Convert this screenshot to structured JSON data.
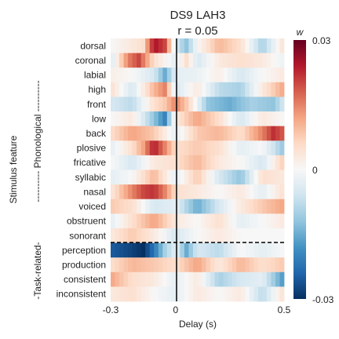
{
  "chart_data": {
    "type": "heatmap",
    "title": "DS9 LAH3",
    "subtitle": "r = 0.05",
    "xlabel": "Delay (s)",
    "ylabel": "Stimulus feature",
    "group_labels": [
      "---------- Phonological ----------",
      "-Task-related-"
    ],
    "xlim": [
      -0.3,
      0.5
    ],
    "x_ticks": [
      "-0.3",
      "0",
      "0.5"
    ],
    "vertical_line_at": 0,
    "separator_after_row": "sonorant",
    "rows": [
      "dorsal",
      "coronal",
      "labial",
      "high",
      "front",
      "low",
      "back",
      "plosive",
      "fricative",
      "syllabic",
      "nasal",
      "voiced",
      "obstruent",
      "sonorant",
      "perception",
      "production",
      "consistent",
      "inconsistent"
    ],
    "n_delay_bins": 40,
    "colorbar": {
      "label": "w",
      "min": -0.03,
      "max": 0.03,
      "ticks": [
        "0.03",
        "0",
        "-0.03"
      ],
      "colormap": "RdBu_r",
      "stops": [
        "#053061",
        "#2166ac",
        "#4393c3",
        "#92c5de",
        "#d1e5f0",
        "#f7f7f7",
        "#fddbc7",
        "#f4a582",
        "#d6604d",
        "#b2182b",
        "#67001f"
      ]
    },
    "weights": {
      "dorsal": [
        [
          -0.3,
          0
        ],
        [
          -0.15,
          0.005
        ],
        [
          -0.1,
          0.025
        ],
        [
          -0.05,
          0.02
        ],
        [
          0,
          -0.005
        ],
        [
          0.05,
          -0.012
        ],
        [
          0.1,
          0
        ],
        [
          0.2,
          0.01
        ],
        [
          0.3,
          0.005
        ],
        [
          0.4,
          -0.01
        ],
        [
          0.5,
          0.005
        ]
      ],
      "coronal": [
        [
          -0.3,
          -0.005
        ],
        [
          -0.22,
          0.015
        ],
        [
          -0.17,
          0.02
        ],
        [
          -0.1,
          0.005
        ],
        [
          0,
          -0.003
        ],
        [
          0.05,
          0.005
        ],
        [
          0.1,
          -0.005
        ],
        [
          0.2,
          0.003
        ],
        [
          0.3,
          0.005
        ],
        [
          0.4,
          0.003
        ],
        [
          0.5,
          -0.002
        ]
      ],
      "labial": [
        [
          -0.3,
          0.002
        ],
        [
          -0.2,
          0
        ],
        [
          -0.1,
          -0.005
        ],
        [
          -0.05,
          -0.015
        ],
        [
          0,
          -0.003
        ],
        [
          0.1,
          -0.002
        ],
        [
          0.2,
          0.002
        ],
        [
          0.3,
          -0.005
        ],
        [
          0.4,
          0
        ],
        [
          0.5,
          0.003
        ]
      ],
      "high": [
        [
          -0.3,
          0.005
        ],
        [
          -0.2,
          -0.005
        ],
        [
          -0.1,
          0.01
        ],
        [
          -0.05,
          0.015
        ],
        [
          0,
          -0.005
        ],
        [
          0.1,
          0.003
        ],
        [
          0.2,
          -0.008
        ],
        [
          0.3,
          -0.01
        ],
        [
          0.4,
          0.003
        ],
        [
          0.5,
          0.012
        ]
      ],
      "front": [
        [
          -0.3,
          -0.005
        ],
        [
          -0.2,
          -0.008
        ],
        [
          -0.1,
          0.005
        ],
        [
          -0.05,
          0.008
        ],
        [
          0,
          0.015
        ],
        [
          0.05,
          0.008
        ],
        [
          0.15,
          -0.012
        ],
        [
          0.25,
          -0.015
        ],
        [
          0.35,
          -0.01
        ],
        [
          0.45,
          -0.012
        ],
        [
          0.5,
          -0.005
        ]
      ],
      "low": [
        [
          -0.3,
          0
        ],
        [
          -0.2,
          0.003
        ],
        [
          -0.1,
          -0.012
        ],
        [
          -0.05,
          -0.02
        ],
        [
          0,
          0.003
        ],
        [
          0.1,
          0.012
        ],
        [
          0.2,
          0.005
        ],
        [
          0.3,
          -0.005
        ],
        [
          0.4,
          0.003
        ],
        [
          0.5,
          0
        ]
      ],
      "back": [
        [
          -0.3,
          0.005
        ],
        [
          -0.2,
          0.012
        ],
        [
          -0.1,
          0.008
        ],
        [
          0,
          -0.003
        ],
        [
          0.1,
          0.008
        ],
        [
          0.2,
          0.01
        ],
        [
          0.3,
          0.005
        ],
        [
          0.4,
          0.015
        ],
        [
          0.45,
          0.022
        ],
        [
          0.5,
          0.018
        ]
      ],
      "plosive": [
        [
          -0.3,
          -0.003
        ],
        [
          -0.2,
          0.005
        ],
        [
          -0.15,
          0.012
        ],
        [
          -0.1,
          0.024
        ],
        [
          -0.05,
          0.015
        ],
        [
          0,
          0.005
        ],
        [
          0.1,
          0.008
        ],
        [
          0.2,
          0.005
        ],
        [
          0.3,
          -0.003
        ],
        [
          0.4,
          0
        ],
        [
          0.5,
          -0.012
        ]
      ],
      "fricative": [
        [
          -0.3,
          0
        ],
        [
          -0.2,
          -0.005
        ],
        [
          -0.1,
          0.003
        ],
        [
          0,
          0.005
        ],
        [
          0.1,
          0.01
        ],
        [
          0.2,
          0.003
        ],
        [
          0.3,
          0
        ],
        [
          0.4,
          -0.005
        ],
        [
          0.5,
          0.008
        ]
      ],
      "syllabic": [
        [
          -0.3,
          -0.003
        ],
        [
          -0.2,
          0
        ],
        [
          -0.1,
          0.01
        ],
        [
          0,
          -0.003
        ],
        [
          0.1,
          0.008
        ],
        [
          0.2,
          -0.005
        ],
        [
          0.3,
          -0.012
        ],
        [
          0.4,
          0.005
        ],
        [
          0.5,
          0.003
        ]
      ],
      "nasal": [
        [
          -0.3,
          0.003
        ],
        [
          -0.2,
          0.015
        ],
        [
          -0.15,
          0.02
        ],
        [
          -0.1,
          0.022
        ],
        [
          -0.05,
          0.015
        ],
        [
          0,
          0.005
        ],
        [
          0.1,
          0.003
        ],
        [
          0.2,
          0
        ],
        [
          0.3,
          0.003
        ],
        [
          0.4,
          -0.003
        ],
        [
          0.5,
          0.005
        ]
      ],
      "voiced": [
        [
          -0.3,
          0.008
        ],
        [
          -0.2,
          0.005
        ],
        [
          -0.1,
          -0.005
        ],
        [
          0,
          -0.003
        ],
        [
          0.1,
          -0.015
        ],
        [
          0.2,
          -0.005
        ],
        [
          0.3,
          0.003
        ],
        [
          0.4,
          0.008
        ],
        [
          0.5,
          0.012
        ]
      ],
      "obstruent": [
        [
          -0.3,
          -0.003
        ],
        [
          -0.2,
          0.005
        ],
        [
          -0.1,
          0.012
        ],
        [
          0,
          0.003
        ],
        [
          0.1,
          0
        ],
        [
          0.2,
          0.005
        ],
        [
          0.3,
          -0.003
        ],
        [
          0.4,
          0
        ],
        [
          0.5,
          0.003
        ]
      ],
      "sonorant": [
        [
          -0.3,
          0.003
        ],
        [
          -0.2,
          0.008
        ],
        [
          -0.1,
          0.003
        ],
        [
          0,
          -0.005
        ],
        [
          0.1,
          0
        ],
        [
          0.2,
          0.003
        ],
        [
          0.3,
          0
        ],
        [
          0.4,
          0
        ],
        [
          0.5,
          0
        ]
      ],
      "perception": [
        [
          -0.3,
          -0.025
        ],
        [
          -0.2,
          -0.028
        ],
        [
          -0.15,
          -0.03
        ],
        [
          -0.1,
          -0.022
        ],
        [
          -0.05,
          -0.01
        ],
        [
          0,
          -0.003
        ],
        [
          0.05,
          -0.015
        ],
        [
          0.1,
          -0.005
        ],
        [
          0.2,
          -0.008
        ],
        [
          0.3,
          0
        ],
        [
          0.4,
          -0.003
        ],
        [
          0.5,
          0
        ]
      ],
      "production": [
        [
          -0.3,
          0.005
        ],
        [
          -0.2,
          0.01
        ],
        [
          -0.1,
          0.008
        ],
        [
          0,
          0.005
        ],
        [
          0.1,
          0.012
        ],
        [
          0.2,
          0.003
        ],
        [
          0.3,
          0.01
        ],
        [
          0.4,
          0.005
        ],
        [
          0.5,
          0.008
        ]
      ],
      "consistent": [
        [
          -0.3,
          0.012
        ],
        [
          -0.2,
          0.005
        ],
        [
          -0.1,
          0.003
        ],
        [
          0,
          -0.003
        ],
        [
          0.1,
          0.003
        ],
        [
          0.2,
          -0.01
        ],
        [
          0.3,
          -0.005
        ],
        [
          0.4,
          -0.003
        ],
        [
          0.5,
          -0.018
        ]
      ],
      "inconsistent": [
        [
          -0.3,
          0.003
        ],
        [
          -0.2,
          0.005
        ],
        [
          -0.1,
          0
        ],
        [
          0,
          -0.003
        ],
        [
          0.1,
          0.003
        ],
        [
          0.2,
          0
        ],
        [
          0.3,
          0.003
        ],
        [
          0.4,
          -0.008
        ],
        [
          0.5,
          0.005
        ]
      ]
    }
  }
}
